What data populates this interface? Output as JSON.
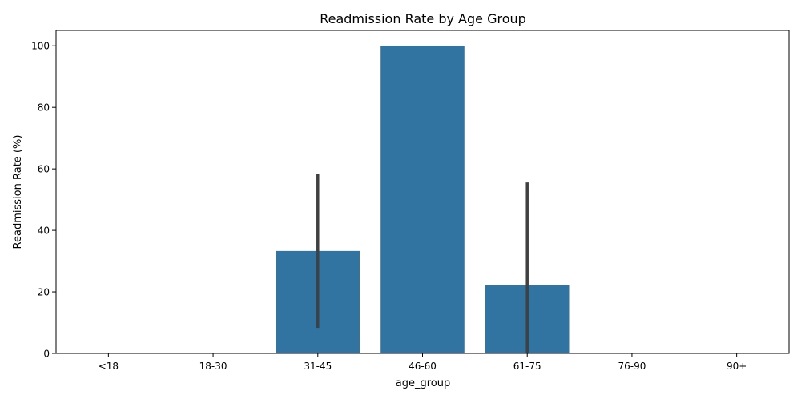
{
  "chart_data": {
    "type": "bar",
    "title": "Readmission Rate by Age Group",
    "xlabel": "age_group",
    "ylabel": "Readmission Rate (%)",
    "categories": [
      "<18",
      "18-30",
      "31-45",
      "46-60",
      "61-75",
      "76-90",
      "90+"
    ],
    "values": [
      null,
      null,
      33.3,
      100,
      22.2,
      null,
      null
    ],
    "error_bars": [
      null,
      null,
      [
        8.3,
        58.3
      ],
      null,
      [
        0,
        55.6
      ],
      null,
      null
    ],
    "ylim": [
      0,
      105
    ],
    "yticks": [
      0,
      20,
      40,
      60,
      80,
      100
    ],
    "bar_color": "#3274a1",
    "error_color": "#404040",
    "grid": false,
    "legend": "none"
  }
}
